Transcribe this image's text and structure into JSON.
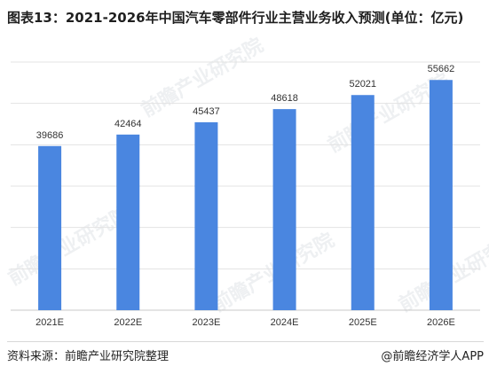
{
  "title": "图表13：2021-2026年中国汽车零部件行业主营业务收入预测(单位：亿元)",
  "footer": {
    "source": "资料来源：前瞻产业研究院整理",
    "brand": "@前瞻经济学人APP"
  },
  "watermark": "前瞻产业研究院",
  "chart_data": {
    "type": "bar",
    "title": "图表13：2021-2026年中国汽车零部件行业主营业务收入预测(单位：亿元)",
    "categories": [
      "2021E",
      "2022E",
      "2023E",
      "2024E",
      "2025E",
      "2026E"
    ],
    "values": [
      39686,
      42464,
      45437,
      48618,
      52021,
      55662
    ],
    "ylim": [
      0,
      60000
    ],
    "grid": true,
    "bar_color": "#4a86e0"
  }
}
